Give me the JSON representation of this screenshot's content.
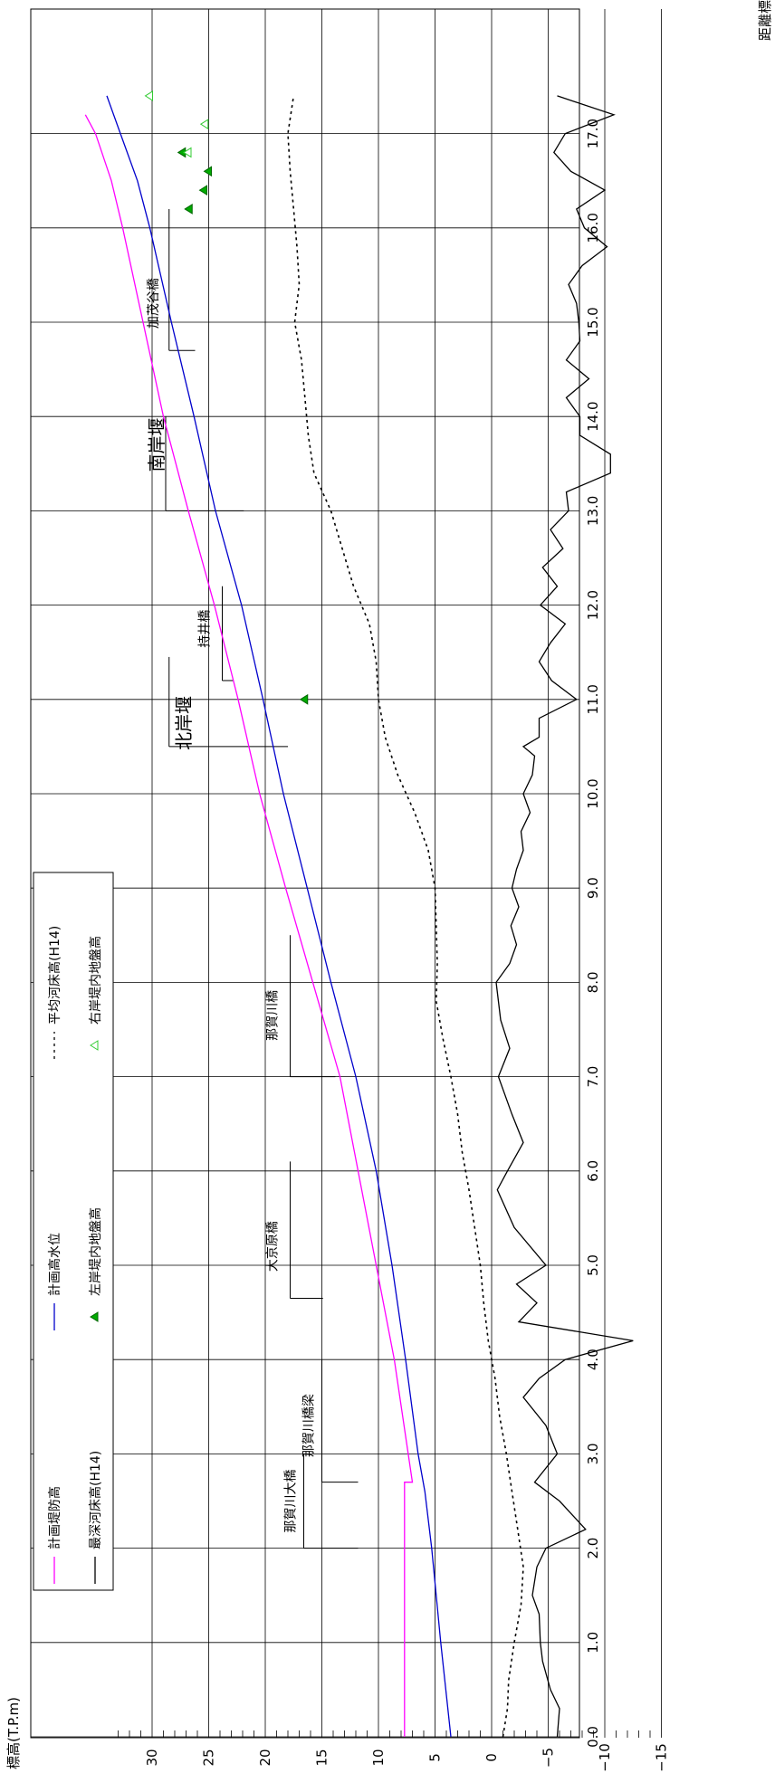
{
  "chart_data": {
    "type": "line",
    "orientation": "rotated-90-ccw",
    "xlabel": "距離標(km)",
    "ylabel": "標高(T.P.m)",
    "xlim": [
      0,
      17.5
    ],
    "ylim": [
      -15,
      34
    ],
    "x_ticks": [
      "0.0",
      "1.0",
      "2.0",
      "3.0",
      "4.0",
      "5.0",
      "6.0",
      "7.0",
      "8.0",
      "9.0",
      "10.0",
      "11.0",
      "12.0",
      "13.0",
      "14.0",
      "15.0",
      "16.0",
      "17.0"
    ],
    "y_ticks": [
      "-15",
      "-10",
      "-5",
      "0",
      "5",
      "10",
      "15",
      "20",
      "25",
      "30"
    ],
    "grid": true,
    "legend_position": "lower-left",
    "legend": [
      {
        "label": "計画堤防高",
        "style": "line",
        "color": "#ff00ff"
      },
      {
        "label": "計画高水位",
        "style": "line",
        "color": "#0000cc"
      },
      {
        "label": "平均河床高(H14)",
        "style": "dotted",
        "color": "#000000"
      },
      {
        "label": "最深河床高(H14)",
        "style": "line",
        "color": "#000000"
      },
      {
        "label": "左岸堤内地盤高",
        "style": "filled-triangle",
        "color": "#00aa00"
      },
      {
        "label": "右岸堤内地盤高",
        "style": "open-triangle",
        "color": "#33cc33"
      }
    ],
    "series": [
      {
        "name": "計画堤防高",
        "color": "#ff00ff",
        "style": "line",
        "x": [
          0.0,
          2.7,
          2.7,
          4.0,
          5.0,
          6.0,
          7.0,
          8.0,
          9.0,
          10.0,
          11.0,
          12.0,
          13.0,
          14.0,
          15.0,
          16.0,
          16.5,
          17.0,
          17.2
        ],
        "y": [
          7.7,
          7.7,
          7.0,
          8.6,
          10.2,
          11.8,
          13.4,
          15.8,
          18.2,
          20.5,
          22.4,
          24.5,
          26.8,
          29.0,
          30.8,
          32.6,
          33.6,
          35.0,
          35.9
        ]
      },
      {
        "name": "計画高水位",
        "color": "#0000cc",
        "style": "line",
        "x": [
          0.0,
          1.0,
          2.0,
          2.6,
          3.0,
          4.0,
          5.0,
          6.0,
          7.0,
          8.0,
          9.0,
          10.0,
          11.0,
          12.0,
          13.0,
          14.0,
          15.0,
          16.0,
          16.5,
          17.0,
          17.4
        ],
        "y": [
          3.6,
          4.5,
          5.3,
          5.9,
          6.5,
          7.6,
          8.8,
          10.2,
          12.0,
          14.2,
          16.3,
          18.4,
          20.2,
          22.1,
          24.4,
          26.3,
          28.3,
          30.2,
          31.3,
          32.8,
          34.0
        ]
      },
      {
        "name": "平均河床高(H14)",
        "color": "#000000",
        "style": "dotted",
        "x": [
          0.0,
          0.3,
          0.6,
          1.0,
          1.4,
          1.8,
          2.2,
          2.6,
          3.0,
          3.4,
          3.8,
          4.2,
          4.6,
          5.0,
          5.4,
          5.8,
          6.2,
          6.6,
          7.0,
          7.4,
          7.8,
          8.2,
          8.6,
          9.0,
          9.4,
          9.8,
          10.2,
          10.6,
          11.0,
          11.4,
          11.8,
          12.2,
          12.6,
          13.0,
          13.4,
          13.8,
          14.2,
          14.6,
          15.0,
          15.4,
          15.8,
          16.2,
          16.6,
          17.0,
          17.4
        ],
        "y": [
          -1.0,
          -1.4,
          -1.5,
          -2.0,
          -2.6,
          -2.8,
          -2.3,
          -1.8,
          -1.3,
          -0.7,
          -0.3,
          0.3,
          0.7,
          1.0,
          1.5,
          2.0,
          2.6,
          3.0,
          3.6,
          4.3,
          4.9,
          4.8,
          4.9,
          5.0,
          5.6,
          6.8,
          8.3,
          9.4,
          10.0,
          10.2,
          10.8,
          12.2,
          13.2,
          14.2,
          15.7,
          16.2,
          16.5,
          16.8,
          17.4,
          17.0,
          17.2,
          17.5,
          17.8,
          18.0,
          17.5
        ]
      },
      {
        "name": "最深河床高(H14)",
        "color": "#000000",
        "style": "line",
        "x": [
          0.0,
          0.3,
          0.5,
          0.8,
          1.0,
          1.3,
          1.5,
          1.8,
          2.0,
          2.2,
          2.5,
          2.7,
          3.0,
          3.3,
          3.6,
          3.8,
          4.0,
          4.2,
          4.4,
          4.6,
          4.8,
          5.0,
          5.4,
          5.8,
          6.0,
          6.3,
          6.6,
          7.0,
          7.3,
          7.6,
          8.0,
          8.2,
          8.4,
          8.6,
          8.8,
          9.0,
          9.2,
          9.4,
          9.6,
          9.8,
          10.0,
          10.2,
          10.4,
          10.5,
          10.6,
          10.8,
          11.0,
          11.2,
          11.4,
          11.6,
          11.8,
          12.0,
          12.2,
          12.4,
          12.6,
          12.8,
          13.0,
          13.2,
          13.4,
          13.6,
          13.8,
          14.0,
          14.2,
          14.4,
          14.6,
          14.8,
          15.0,
          15.2,
          15.4,
          15.6,
          15.8,
          16.0,
          16.2,
          16.4,
          16.6,
          16.8,
          17.0,
          17.2,
          17.4
        ],
        "y": [
          -5.8,
          -6.0,
          -5.2,
          -4.5,
          -4.3,
          -4.2,
          -3.6,
          -4.0,
          -4.8,
          -8.3,
          -6.0,
          -3.8,
          -5.8,
          -4.8,
          -2.8,
          -4.2,
          -6.5,
          -12.5,
          -2.4,
          -4.0,
          -2.2,
          -4.8,
          -2.0,
          -0.5,
          -1.4,
          -2.8,
          -1.8,
          -0.6,
          -1.6,
          -0.8,
          -0.4,
          -1.6,
          -2.2,
          -1.7,
          -2.4,
          -1.8,
          -2.2,
          -2.8,
          -2.6,
          -3.4,
          -2.8,
          -3.6,
          -3.8,
          -2.8,
          -4.2,
          -4.2,
          -7.5,
          -5.3,
          -4.2,
          -5.2,
          -6.5,
          -4.3,
          -5.8,
          -4.5,
          -6.3,
          -5.2,
          -6.8,
          -6.6,
          -10.5,
          -10.5,
          -7.8,
          -7.8,
          -6.6,
          -8.6,
          -6.6,
          -7.8,
          -7.7,
          -7.5,
          -6.8,
          -8.0,
          -10.2,
          -8.2,
          -7.5,
          -10.0,
          -7.0,
          -5.5,
          -6.5,
          -10.8,
          -5.8
        ]
      }
    ],
    "markers": [
      {
        "name": "左岸堤内地盤高",
        "color": "#00aa00",
        "fill": true,
        "x": [
          11.0,
          16.2,
          16.4,
          16.6,
          16.8
        ],
        "y": [
          16.5,
          26.7,
          25.4,
          25.0,
          27.3
        ]
      },
      {
        "name": "右岸堤内地盤高",
        "color": "#33cc33",
        "fill": false,
        "x": [
          16.8,
          17.1,
          17.4
        ],
        "y": [
          26.8,
          25.3,
          30.2
        ]
      }
    ],
    "annotations": [
      {
        "label": "北岸堰",
        "x": 10.75,
        "y_text": 27.2,
        "size": "large",
        "bracket": {
          "y_from": 28.5,
          "y_to": 18.0,
          "x_top": 11.45,
          "x_bottom": 10.5
        }
      },
      {
        "label": "持井橋",
        "x": 11.75,
        "y_text": 25.4,
        "size": "small",
        "bracket": {
          "y_from": 23.8,
          "y_to": 22.8,
          "x_top": 12.2,
          "x_bottom": 11.2
        }
      },
      {
        "label": "南岸堰",
        "x": 13.7,
        "y_text": 29.6,
        "size": "large",
        "bracket": {
          "y_from": 28.8,
          "y_to": 21.9,
          "x_top": 14.0,
          "x_bottom": 13.0
        }
      },
      {
        "label": "加茂谷橋",
        "x": 15.2,
        "y_text": 29.9,
        "size": "small",
        "bracket": {
          "y_from": 28.5,
          "y_to": 26.2,
          "x_top": 16.2,
          "x_bottom": 14.7
        }
      },
      {
        "label": "那賀川橋",
        "x": 7.65,
        "y_text": 19.4,
        "size": "small",
        "bracket": {
          "y_from": 17.8,
          "y_to": 13.8,
          "x_top": 8.5,
          "x_bottom": 7.0
        }
      },
      {
        "label": "大京原橋",
        "x": 5.2,
        "y_text": 19.4,
        "size": "small",
        "bracket": {
          "y_from": 17.8,
          "y_to": 14.9,
          "x_top": 6.1,
          "x_bottom": 4.65
        }
      },
      {
        "label": "那賀川大橋",
        "x": 2.5,
        "y_text": 17.8,
        "size": "small",
        "bracket": {
          "y_from": 16.6,
          "y_to": 11.8,
          "x_top": 3.0,
          "x_bottom": 2.0
        }
      },
      {
        "label": "那賀川橋梁",
        "x": 3.3,
        "y_text": 16.2,
        "size": "small",
        "bracket": {
          "y_from": 15.0,
          "y_to": 11.8,
          "x_top": 4.0,
          "x_bottom": 2.7
        }
      }
    ]
  }
}
